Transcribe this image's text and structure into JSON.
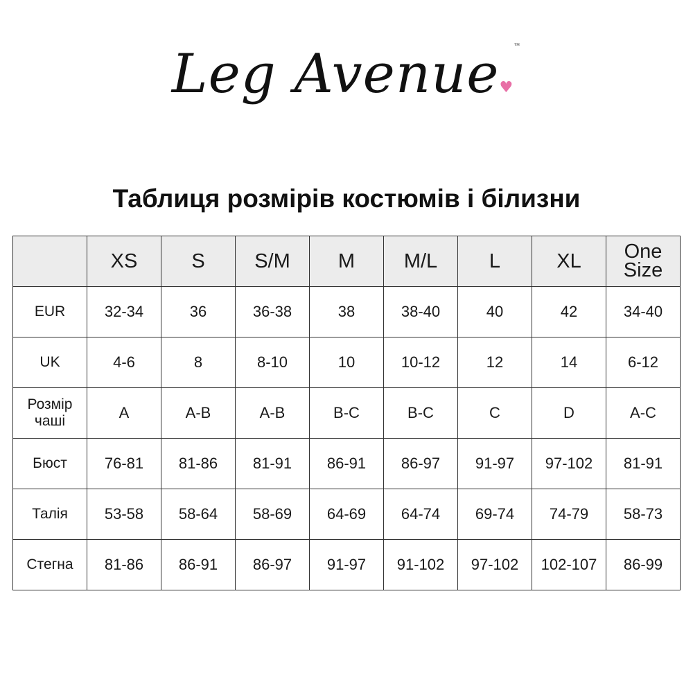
{
  "logo": {
    "text": "Leg Avenue",
    "tm": "™",
    "accent_color": "#e86fa6"
  },
  "title": "Таблиця розмірів костюмів і білизни",
  "table": {
    "headers": [
      "",
      "XS",
      "S",
      "S/M",
      "M",
      "M/L",
      "L",
      "XL",
      "One Size"
    ],
    "rows": [
      {
        "label": "EUR",
        "values": [
          "32-34",
          "36",
          "36-38",
          "38",
          "38-40",
          "40",
          "42",
          "34-40"
        ]
      },
      {
        "label": "UK",
        "values": [
          "4-6",
          "8",
          "8-10",
          "10",
          "10-12",
          "12",
          "14",
          "6-12"
        ]
      },
      {
        "label": "Розмір чаші",
        "values": [
          "A",
          "A-B",
          "A-B",
          "B-C",
          "B-C",
          "C",
          "D",
          "A-C"
        ]
      },
      {
        "label": "Бюст",
        "values": [
          "76-81",
          "81-86",
          "81-91",
          "86-91",
          "86-97",
          "91-97",
          "97-102",
          "81-91"
        ]
      },
      {
        "label": "Талія",
        "values": [
          "53-58",
          "58-64",
          "58-69",
          "64-69",
          "64-74",
          "69-74",
          "74-79",
          "58-73"
        ]
      },
      {
        "label": "Стегна",
        "values": [
          "81-86",
          "86-91",
          "86-97",
          "91-97",
          "91-102",
          "97-102",
          "102-107",
          "86-99"
        ]
      }
    ]
  }
}
